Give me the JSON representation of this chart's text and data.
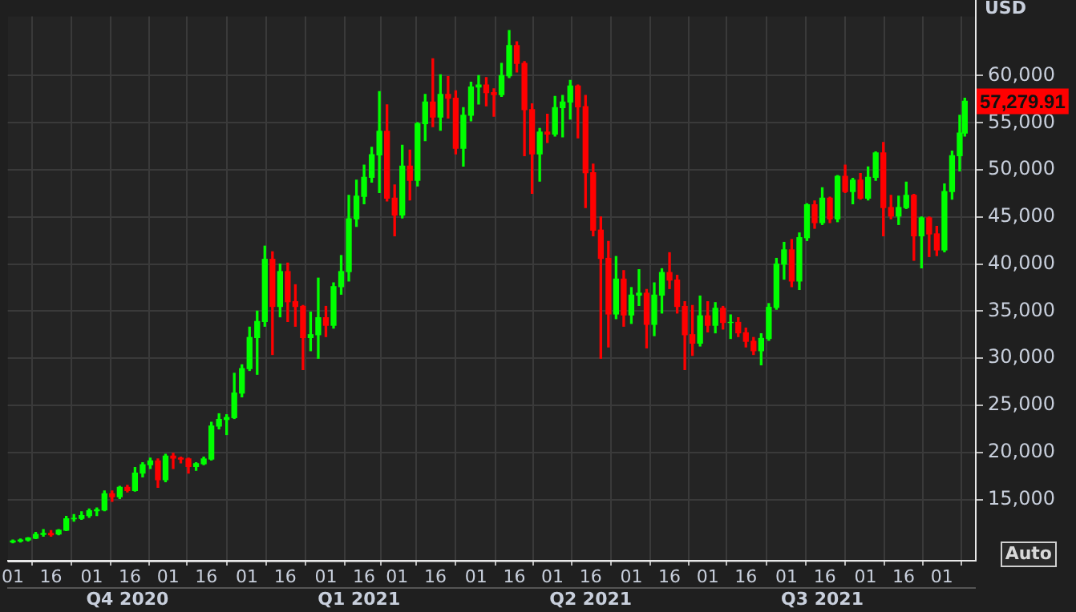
{
  "chart_data": {
    "type": "candlestick",
    "ylabel": "USD",
    "x": [
      "2020-10-01",
      "2020-10-04",
      "2020-10-07",
      "2020-10-10",
      "2020-10-13",
      "2020-10-16",
      "2020-10-19",
      "2020-10-22",
      "2020-10-25",
      "2020-10-28",
      "2020-10-31",
      "2020-11-03",
      "2020-11-06",
      "2020-11-09",
      "2020-11-12",
      "2020-11-15",
      "2020-11-18",
      "2020-11-21",
      "2020-11-24",
      "2020-11-27",
      "2020-11-30",
      "2020-12-03",
      "2020-12-06",
      "2020-12-09",
      "2020-12-12",
      "2020-12-15",
      "2020-12-18",
      "2020-12-21",
      "2020-12-24",
      "2020-12-27",
      "2020-12-30",
      "2021-01-02",
      "2021-01-05",
      "2021-01-08",
      "2021-01-11",
      "2021-01-14",
      "2021-01-17",
      "2021-01-20",
      "2021-01-23",
      "2021-01-26",
      "2021-01-29",
      "2021-02-01",
      "2021-02-04",
      "2021-02-07",
      "2021-02-10",
      "2021-02-13",
      "2021-02-16",
      "2021-02-19",
      "2021-02-22",
      "2021-02-25",
      "2021-02-28",
      "2021-03-03",
      "2021-03-06",
      "2021-03-09",
      "2021-03-12",
      "2021-03-15",
      "2021-03-18",
      "2021-03-21",
      "2021-03-24",
      "2021-03-27",
      "2021-03-30",
      "2021-04-02",
      "2021-04-05",
      "2021-04-08",
      "2021-04-11",
      "2021-04-14",
      "2021-04-17",
      "2021-04-20",
      "2021-04-23",
      "2021-04-26",
      "2021-04-29",
      "2021-05-02",
      "2021-05-05",
      "2021-05-08",
      "2021-05-11",
      "2021-05-14",
      "2021-05-17",
      "2021-05-20",
      "2021-05-23",
      "2021-05-26",
      "2021-05-29",
      "2021-06-01",
      "2021-06-04",
      "2021-06-07",
      "2021-06-10",
      "2021-06-13",
      "2021-06-16",
      "2021-06-19",
      "2021-06-22",
      "2021-06-25",
      "2021-06-28",
      "2021-07-01",
      "2021-07-04",
      "2021-07-07",
      "2021-07-10",
      "2021-07-13",
      "2021-07-16",
      "2021-07-19",
      "2021-07-22",
      "2021-07-25",
      "2021-07-28",
      "2021-07-31",
      "2021-08-03",
      "2021-08-06",
      "2021-08-09",
      "2021-08-12",
      "2021-08-15",
      "2021-08-18",
      "2021-08-21",
      "2021-08-24",
      "2021-08-27",
      "2021-08-30",
      "2021-09-02",
      "2021-09-05",
      "2021-09-08",
      "2021-09-11",
      "2021-09-14",
      "2021-09-17",
      "2021-09-20",
      "2021-09-23",
      "2021-09-26",
      "2021-09-29",
      "2021-10-02",
      "2021-10-05",
      "2021-10-08",
      "2021-10-10"
    ],
    "ohlc": [
      [
        10500,
        10700,
        10400,
        10600
      ],
      [
        10600,
        10800,
        10500,
        10700
      ],
      [
        10700,
        10950,
        10600,
        10900
      ],
      [
        10900,
        11500,
        10850,
        11300
      ],
      [
        11300,
        11800,
        11100,
        11400
      ],
      [
        11400,
        11700,
        11100,
        11250
      ],
      [
        11350,
        11800,
        11250,
        11750
      ],
      [
        11750,
        13200,
        11700,
        12950
      ],
      [
        12950,
        13400,
        12700,
        13000
      ],
      [
        13000,
        13700,
        12900,
        13300
      ],
      [
        13300,
        14000,
        13100,
        13800
      ],
      [
        13800,
        14100,
        13300,
        13900
      ],
      [
        13900,
        15900,
        13800,
        15600
      ],
      [
        15600,
        15900,
        14800,
        15300
      ],
      [
        15300,
        16400,
        15100,
        16300
      ],
      [
        16300,
        16500,
        15800,
        15950
      ],
      [
        15950,
        18400,
        15900,
        17800
      ],
      [
        17800,
        18900,
        17400,
        18700
      ],
      [
        18700,
        19400,
        18300,
        19100
      ],
      [
        19100,
        19300,
        16300,
        17100
      ],
      [
        17100,
        19800,
        16900,
        19600
      ],
      [
        19600,
        19900,
        18300,
        19400
      ],
      [
        19400,
        19500,
        18900,
        19300
      ],
      [
        19300,
        19400,
        17800,
        18500
      ],
      [
        18500,
        18900,
        18100,
        18800
      ],
      [
        18800,
        19500,
        18700,
        19300
      ],
      [
        19300,
        23200,
        19200,
        22800
      ],
      [
        22800,
        24100,
        22500,
        23500
      ],
      [
        23500,
        24000,
        21900,
        23700
      ],
      [
        23700,
        28400,
        23600,
        26300
      ],
      [
        26300,
        29300,
        25900,
        28900
      ],
      [
        28900,
        33300,
        28700,
        32200
      ],
      [
        32200,
        35000,
        28300,
        33900
      ],
      [
        33900,
        41900,
        33400,
        40500
      ],
      [
        40500,
        41300,
        30400,
        35500
      ],
      [
        35500,
        40000,
        34400,
        39200
      ],
      [
        39200,
        40100,
        33900,
        36000
      ],
      [
        36000,
        37800,
        33400,
        35500
      ],
      [
        35500,
        35600,
        28800,
        32200
      ],
      [
        32200,
        34900,
        30800,
        32500
      ],
      [
        32500,
        38500,
        30000,
        34300
      ],
      [
        34300,
        35500,
        32300,
        33500
      ],
      [
        33500,
        38000,
        33200,
        37600
      ],
      [
        37600,
        40900,
        36800,
        39200
      ],
      [
        39200,
        47300,
        38200,
        44800
      ],
      [
        44800,
        48900,
        44000,
        47200
      ],
      [
        47200,
        50500,
        46400,
        49200
      ],
      [
        49200,
        52400,
        48700,
        51600
      ],
      [
        51600,
        58300,
        47600,
        54100
      ],
      [
        54100,
        56900,
        46700,
        47000
      ],
      [
        47000,
        48400,
        43000,
        45200
      ],
      [
        45200,
        52600,
        44900,
        50400
      ],
      [
        50400,
        52100,
        46800,
        48900
      ],
      [
        48900,
        55000,
        48300,
        54900
      ],
      [
        54900,
        58000,
        53100,
        57200
      ],
      [
        57200,
        61800,
        54600,
        55600
      ],
      [
        55600,
        60100,
        54200,
        58000
      ],
      [
        58000,
        59900,
        55500,
        57600
      ],
      [
        57600,
        58400,
        51700,
        52300
      ],
      [
        52300,
        56600,
        50400,
        55800
      ],
      [
        55800,
        59300,
        55200,
        58800
      ],
      [
        58800,
        60000,
        57000,
        59000
      ],
      [
        59000,
        59800,
        56800,
        58200
      ],
      [
        58200,
        58600,
        55700,
        58000
      ],
      [
        58000,
        61300,
        57800,
        60000
      ],
      [
        60000,
        64800,
        59800,
        63200
      ],
      [
        63200,
        63600,
        60400,
        61300
      ],
      [
        61300,
        61500,
        51500,
        56400
      ],
      [
        56400,
        57000,
        47500,
        51700
      ],
      [
        51700,
        54400,
        48800,
        54000
      ],
      [
        54000,
        55900,
        52900,
        53800
      ],
      [
        53800,
        57800,
        53600,
        56600
      ],
      [
        56600,
        57900,
        53500,
        57200
      ],
      [
        57200,
        59500,
        55400,
        58900
      ],
      [
        58900,
        59000,
        53400,
        56700
      ],
      [
        56700,
        57900,
        46000,
        49700
      ],
      [
        49700,
        50600,
        43000,
        43600
      ],
      [
        43600,
        45000,
        30000,
        40600
      ],
      [
        40600,
        42400,
        31200,
        34700
      ],
      [
        34700,
        40800,
        34200,
        38400
      ],
      [
        38400,
        39300,
        33400,
        34600
      ],
      [
        34600,
        37500,
        33700,
        36700
      ],
      [
        36700,
        39400,
        35600,
        36900
      ],
      [
        36900,
        37300,
        31100,
        33600
      ],
      [
        33600,
        38000,
        32400,
        36700
      ],
      [
        36700,
        39500,
        34800,
        39100
      ],
      [
        39100,
        41200,
        37400,
        38300
      ],
      [
        38300,
        38800,
        34800,
        35500
      ],
      [
        35500,
        36000,
        28800,
        32500
      ],
      [
        32500,
        35600,
        30300,
        31600
      ],
      [
        31600,
        36600,
        31300,
        34500
      ],
      [
        34500,
        36000,
        32800,
        33500
      ],
      [
        33500,
        35900,
        32700,
        35300
      ],
      [
        35300,
        35500,
        33100,
        33800
      ],
      [
        33800,
        34600,
        32100,
        33800
      ],
      [
        33800,
        34300,
        32300,
        32700
      ],
      [
        32700,
        33200,
        31200,
        31800
      ],
      [
        31800,
        32200,
        30400,
        30800
      ],
      [
        30800,
        32600,
        29300,
        32100
      ],
      [
        32100,
        35800,
        31900,
        35400
      ],
      [
        35400,
        40600,
        35200,
        40000
      ],
      [
        40000,
        42300,
        38400,
        41500
      ],
      [
        41500,
        42600,
        37600,
        38200
      ],
      [
        38200,
        43300,
        37300,
        42800
      ],
      [
        42800,
        46400,
        42500,
        46300
      ],
      [
        46300,
        46700,
        43800,
        44400
      ],
      [
        44400,
        48100,
        44200,
        47000
      ],
      [
        47000,
        47100,
        44400,
        44800
      ],
      [
        44800,
        49400,
        44500,
        49300
      ],
      [
        49300,
        50500,
        47600,
        47700
      ],
      [
        47700,
        49100,
        46400,
        48900
      ],
      [
        48900,
        49600,
        46900,
        47000
      ],
      [
        47000,
        50300,
        46800,
        49200
      ],
      [
        49200,
        51900,
        48900,
        51800
      ],
      [
        51800,
        52900,
        43000,
        46000
      ],
      [
        46000,
        47300,
        44800,
        45100
      ],
      [
        45100,
        47200,
        44200,
        46000
      ],
      [
        46000,
        48700,
        45900,
        47300
      ],
      [
        47300,
        47400,
        40400,
        43000
      ],
      [
        43000,
        45000,
        39600,
        44900
      ],
      [
        44900,
        45000,
        40800,
        43200
      ],
      [
        43200,
        44000,
        40900,
        41500
      ],
      [
        41500,
        48500,
        41300,
        47700
      ],
      [
        47700,
        52000,
        46900,
        51500
      ],
      [
        51500,
        55800,
        49900,
        53900
      ],
      [
        53900,
        57600,
        53600,
        57279.91
      ]
    ],
    "colors": [
      "#00ff00",
      "#00ff00",
      "#00ff00",
      "#00ff00",
      "#00ff00",
      "#ff0000",
      "#00ff00",
      "#00ff00",
      "#00ff00",
      "#00ff00",
      "#00ff00",
      "#00ff00",
      "#00ff00",
      "#ff0000",
      "#00ff00",
      "#ff0000",
      "#00ff00",
      "#00ff00",
      "#00ff00",
      "#ff0000",
      "#00ff00",
      "#ff0000",
      "#ff0000",
      "#ff0000",
      "#00ff00",
      "#00ff00",
      "#00ff00",
      "#00ff00",
      "#00ff00",
      "#00ff00",
      "#00ff00",
      "#00ff00",
      "#00ff00",
      "#00ff00",
      "#ff0000",
      "#00ff00",
      "#ff0000",
      "#ff0000",
      "#ff0000",
      "#00ff00",
      "#00ff00",
      "#ff0000",
      "#00ff00",
      "#00ff00",
      "#00ff00",
      "#00ff00",
      "#00ff00",
      "#00ff00",
      "#00ff00",
      "#ff0000",
      "#ff0000",
      "#00ff00",
      "#ff0000",
      "#00ff00",
      "#00ff00",
      "#ff0000",
      "#00ff00",
      "#ff0000",
      "#ff0000",
      "#00ff00",
      "#00ff00",
      "#00ff00",
      "#ff0000",
      "#ff0000",
      "#00ff00",
      "#00ff00",
      "#ff0000",
      "#ff0000",
      "#ff0000",
      "#00ff00",
      "#ff0000",
      "#00ff00",
      "#00ff00",
      "#00ff00",
      "#ff0000",
      "#ff0000",
      "#ff0000",
      "#ff0000",
      "#ff0000",
      "#00ff00",
      "#ff0000",
      "#00ff00",
      "#00ff00",
      "#ff0000",
      "#00ff00",
      "#00ff00",
      "#ff0000",
      "#ff0000",
      "#ff0000",
      "#ff0000",
      "#00ff00",
      "#ff0000",
      "#00ff00",
      "#ff0000",
      "#00ff00",
      "#ff0000",
      "#ff0000",
      "#ff0000",
      "#00ff00",
      "#00ff00",
      "#00ff00",
      "#00ff00",
      "#ff0000",
      "#00ff00",
      "#00ff00",
      "#ff0000",
      "#00ff00",
      "#ff0000",
      "#00ff00",
      "#ff0000",
      "#00ff00",
      "#ff0000",
      "#00ff00",
      "#00ff00",
      "#ff0000",
      "#ff0000",
      "#00ff00",
      "#00ff00",
      "#ff0000",
      "#00ff00",
      "#ff0000",
      "#ff0000",
      "#00ff00",
      "#00ff00",
      "#00ff00",
      "#00ff00"
    ],
    "xlim": [
      "2020-09-29",
      "2021-10-14"
    ],
    "xticks": [
      {
        "value": "2020-10-01",
        "label": "01"
      },
      {
        "value": "2020-10-16",
        "label": "16"
      },
      {
        "value": "2020-11-01",
        "label": "01"
      },
      {
        "value": "2020-11-16",
        "label": "16"
      },
      {
        "value": "2020-12-01",
        "label": "01"
      },
      {
        "value": "2020-12-16",
        "label": "16"
      },
      {
        "value": "2021-01-01",
        "label": "01"
      },
      {
        "value": "2021-01-16",
        "label": "16"
      },
      {
        "value": "2021-02-01",
        "label": "01"
      },
      {
        "value": "2021-02-16",
        "label": "16"
      },
      {
        "value": "2021-03-01",
        "label": "01"
      },
      {
        "value": "2021-03-16",
        "label": "16"
      },
      {
        "value": "2021-04-01",
        "label": "01"
      },
      {
        "value": "2021-04-16",
        "label": "16"
      },
      {
        "value": "2021-05-01",
        "label": "01"
      },
      {
        "value": "2021-05-16",
        "label": "16"
      },
      {
        "value": "2021-06-01",
        "label": "01"
      },
      {
        "value": "2021-06-16",
        "label": "16"
      },
      {
        "value": "2021-07-01",
        "label": "01"
      },
      {
        "value": "2021-07-16",
        "label": "16"
      },
      {
        "value": "2021-08-01",
        "label": "01"
      },
      {
        "value": "2021-08-16",
        "label": "16"
      },
      {
        "value": "2021-09-01",
        "label": "01"
      },
      {
        "value": "2021-09-16",
        "label": "16"
      },
      {
        "value": "2021-10-01",
        "label": "01"
      }
    ],
    "x2lim": [
      "2020-09-29",
      "2021-10-14"
    ],
    "x2ticks": [
      {
        "value": "2020-11-15",
        "label": "Q4 2020"
      },
      {
        "value": "2021-02-14",
        "label": "Q1 2021"
      },
      {
        "value": "2021-05-16",
        "label": "Q2 2021"
      },
      {
        "value": "2021-08-15",
        "label": "Q3 2021"
      }
    ],
    "ylim": [
      8500,
      66300
    ],
    "yticks": [
      {
        "value": 15000,
        "label": "15,000"
      },
      {
        "value": 20000,
        "label": "20,000"
      },
      {
        "value": 25000,
        "label": "25,000"
      },
      {
        "value": 30000,
        "label": "30,000"
      },
      {
        "value": 35000,
        "label": "35,000"
      },
      {
        "value": 40000,
        "label": "40,000"
      },
      {
        "value": 45000,
        "label": "45,000"
      },
      {
        "value": 50000,
        "label": "50,000"
      },
      {
        "value": 55000,
        "label": "55,000"
      },
      {
        "value": 60000,
        "label": "60,000"
      }
    ],
    "grid": true,
    "annotations": [
      "57,279.91",
      "Auto"
    ]
  }
}
